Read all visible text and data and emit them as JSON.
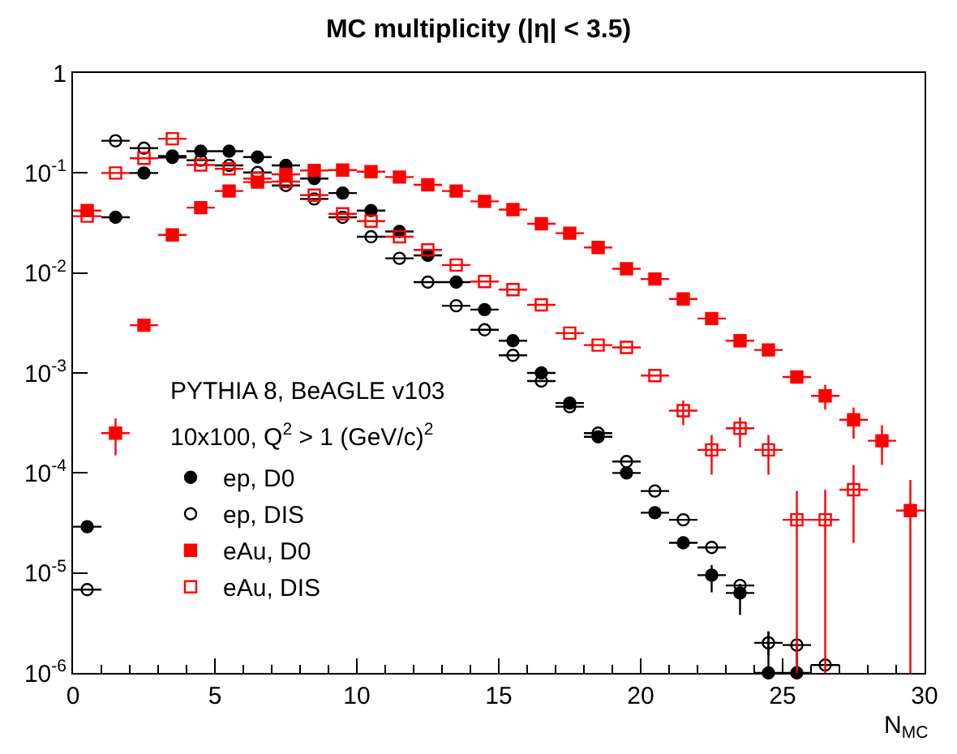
{
  "chart_data": {
    "type": "scatter",
    "title": "MC multiplicity (|η| < 3.5)",
    "xlabel": "N$_{MC}$",
    "annotations": [
      "PYTHIA 8, BeAGLE v103",
      "10x100, Q$^{2}$ > 1 (GeV/c)$^{2}$"
    ],
    "x": [
      0.5,
      1.5,
      2.5,
      3.5,
      4.5,
      5.5,
      6.5,
      7.5,
      8.5,
      9.5,
      10.5,
      11.5,
      12.5,
      13.5,
      14.5,
      15.5,
      16.5,
      17.5,
      18.5,
      19.5,
      20.5,
      21.5,
      22.5,
      23.5,
      24.5,
      25.5,
      26.5,
      27.5,
      28.5,
      29.5
    ],
    "series": [
      {
        "name": "ep, D0",
        "color": "#000000",
        "marker": "circle",
        "values": [
          2.9e-05,
          0.036,
          0.1,
          0.143,
          0.165,
          0.165,
          0.144,
          0.119,
          0.088,
          0.063,
          0.042,
          0.026,
          0.015,
          0.0081,
          0.0043,
          0.0021,
          0.001,
          0.0005,
          0.00023,
          0.0001,
          4e-05,
          2e-05,
          9.5e-06,
          6.3e-06,
          1e-06,
          1e-06,
          null,
          null,
          null,
          null
        ],
        "errors": [
          null,
          null,
          null,
          null,
          null,
          null,
          null,
          null,
          null,
          null,
          null,
          null,
          null,
          null,
          null,
          null,
          null,
          null,
          null,
          null,
          null,
          null,
          [
            6.4e-06,
            1.2e-05
          ],
          [
            3.8e-06,
            7.8e-06
          ],
          [
            1e-06,
            2.6e-06
          ],
          [
            1e-06,
            2e-06
          ],
          null,
          null,
          null,
          null
        ],
        "xerrors": [
          0.5,
          0.5,
          0.5,
          0.5,
          0.5,
          0.5,
          0.5,
          0.5,
          0.5,
          0.5,
          0.5,
          0.5,
          0.5,
          0.5,
          0.5,
          0.5,
          0.5,
          0.5,
          0.5,
          0.5,
          0.5,
          0.5,
          0.5,
          0.5,
          0.5,
          0.5,
          null,
          null,
          null,
          null
        ]
      },
      {
        "name": "ep, DIS",
        "color": "#000000",
        "marker": "circle-open",
        "values": [
          6.8e-06,
          0.21,
          0.177,
          0.148,
          0.134,
          0.119,
          0.101,
          0.075,
          0.055,
          0.036,
          0.023,
          0.014,
          0.0081,
          0.0047,
          0.0027,
          0.0015,
          0.00083,
          0.00046,
          0.00025,
          0.00013,
          6.6e-05,
          3.4e-05,
          1.8e-05,
          7.5e-06,
          2e-06,
          1.9e-06,
          1.2e-06,
          null,
          null,
          null
        ],
        "errors": [
          null,
          null,
          null,
          null,
          null,
          null,
          null,
          null,
          null,
          null,
          null,
          null,
          null,
          null,
          null,
          null,
          null,
          null,
          null,
          null,
          null,
          null,
          null,
          null,
          [
            1.5e-06,
            2.6e-06
          ],
          null,
          null,
          null,
          null,
          null
        ],
        "xerrors": [
          0.5,
          0.5,
          0.5,
          0.5,
          0.5,
          0.5,
          0.5,
          0.5,
          0.5,
          0.5,
          0.5,
          0.5,
          0.5,
          0.5,
          0.5,
          0.5,
          0.5,
          0.5,
          0.5,
          0.5,
          0.5,
          0.5,
          0.5,
          0.5,
          0.5,
          0.5,
          0.5,
          null,
          null,
          null
        ]
      },
      {
        "name": "eAu, D0",
        "color": "#ff0000",
        "marker": "square",
        "values": [
          0.042,
          0.00025,
          0.003,
          0.024,
          0.045,
          0.066,
          0.081,
          0.097,
          0.106,
          0.107,
          0.103,
          0.091,
          0.076,
          0.066,
          0.052,
          0.043,
          0.031,
          0.025,
          0.018,
          0.011,
          0.0087,
          0.0055,
          0.0035,
          0.0021,
          0.0017,
          0.00091,
          0.00059,
          0.00034,
          0.00021,
          4.2e-05
        ],
        "errors": [
          null,
          [
            0.00015,
            0.00035
          ],
          null,
          null,
          null,
          null,
          null,
          null,
          null,
          null,
          null,
          null,
          null,
          null,
          null,
          null,
          null,
          null,
          null,
          null,
          null,
          null,
          null,
          null,
          null,
          null,
          [
            0.00043,
            0.00076
          ],
          [
            0.00022,
            0.00045
          ],
          [
            0.00012,
            0.0003
          ],
          [
            1e-06,
            8.5e-05
          ]
        ],
        "xerrors": [
          0.5,
          0.5,
          0.5,
          0.5,
          0.5,
          0.5,
          0.5,
          0.5,
          0.5,
          0.5,
          0.5,
          0.5,
          0.5,
          0.5,
          0.5,
          0.5,
          0.5,
          0.5,
          0.5,
          0.5,
          0.5,
          0.5,
          0.5,
          0.5,
          0.5,
          0.5,
          0.5,
          0.5,
          0.5,
          0.5
        ]
      },
      {
        "name": "eAu, DIS",
        "color": "#ff0000",
        "marker": "square-open",
        "values": [
          0.037,
          0.1,
          0.14,
          0.22,
          0.12,
          0.11,
          0.088,
          0.082,
          0.06,
          0.039,
          0.033,
          0.023,
          0.017,
          0.012,
          0.0082,
          0.0068,
          0.0048,
          0.0025,
          0.0019,
          0.0018,
          0.00094,
          0.00042,
          0.00017,
          0.00028,
          0.00017,
          3.4e-05,
          3.4e-05,
          6.8e-05,
          null,
          null
        ],
        "errors": [
          null,
          null,
          null,
          null,
          null,
          null,
          null,
          null,
          null,
          null,
          null,
          null,
          null,
          null,
          null,
          null,
          null,
          null,
          null,
          null,
          null,
          [
            0.0003,
            0.00053
          ],
          [
            9.6e-05,
            0.00024
          ],
          [
            0.00018,
            0.00036
          ],
          [
            9.6e-05,
            0.00024
          ],
          [
            1e-06,
            6.6e-05
          ],
          [
            1e-06,
            6.8e-05
          ],
          [
            2e-05,
            0.00012
          ],
          null,
          null
        ],
        "xerrors": [
          0.5,
          0.5,
          0.5,
          0.5,
          0.5,
          0.5,
          0.5,
          0.5,
          0.5,
          0.5,
          0.5,
          0.5,
          0.5,
          0.5,
          0.5,
          0.5,
          0.5,
          0.5,
          0.5,
          0.5,
          0.5,
          0.5,
          0.5,
          0.5,
          0.5,
          0.5,
          0.5,
          0.5,
          null,
          null
        ]
      }
    ],
    "log": "y",
    "xlim": [
      0,
      30
    ],
    "ylim": [
      1e-06,
      1
    ],
    "xticks": [
      0,
      5,
      10,
      15,
      20,
      25,
      30
    ],
    "yticks": [
      {
        "value": 1e-06,
        "label": "10$^{-6}$"
      },
      {
        "value": 1e-05,
        "label": "10$^{-5}$"
      },
      {
        "value": 0.0001,
        "label": "10$^{-4}$"
      },
      {
        "value": 0.001,
        "label": "10$^{-3}$"
      },
      {
        "value": 0.01,
        "label": "10$^{-2}$"
      },
      {
        "value": 0.1,
        "label": "10$^{-1}$"
      },
      1
    ],
    "grid": false,
    "legend": "bottom left"
  }
}
